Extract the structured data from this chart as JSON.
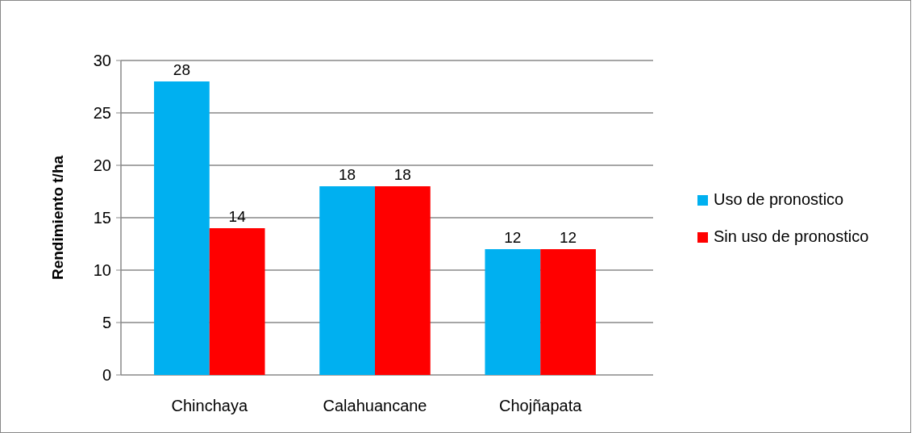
{
  "chart_data": {
    "type": "bar",
    "ylabel": "Rendimiento t/ha",
    "categories": [
      "Chinchaya",
      "Calahuancane",
      "Chojñapata"
    ],
    "series": [
      {
        "name": "Uso de pronostico",
        "color": "#00b0f0",
        "values": [
          28,
          18,
          12
        ]
      },
      {
        "name": "Sin uso de pronostico",
        "color": "#ff0000",
        "values": [
          14,
          18,
          12
        ]
      }
    ],
    "ylim": [
      0,
      30
    ],
    "yticks": [
      0,
      5,
      10,
      15,
      20,
      25,
      30
    ],
    "grid": "y",
    "legend": "right",
    "data_labels": true
  }
}
